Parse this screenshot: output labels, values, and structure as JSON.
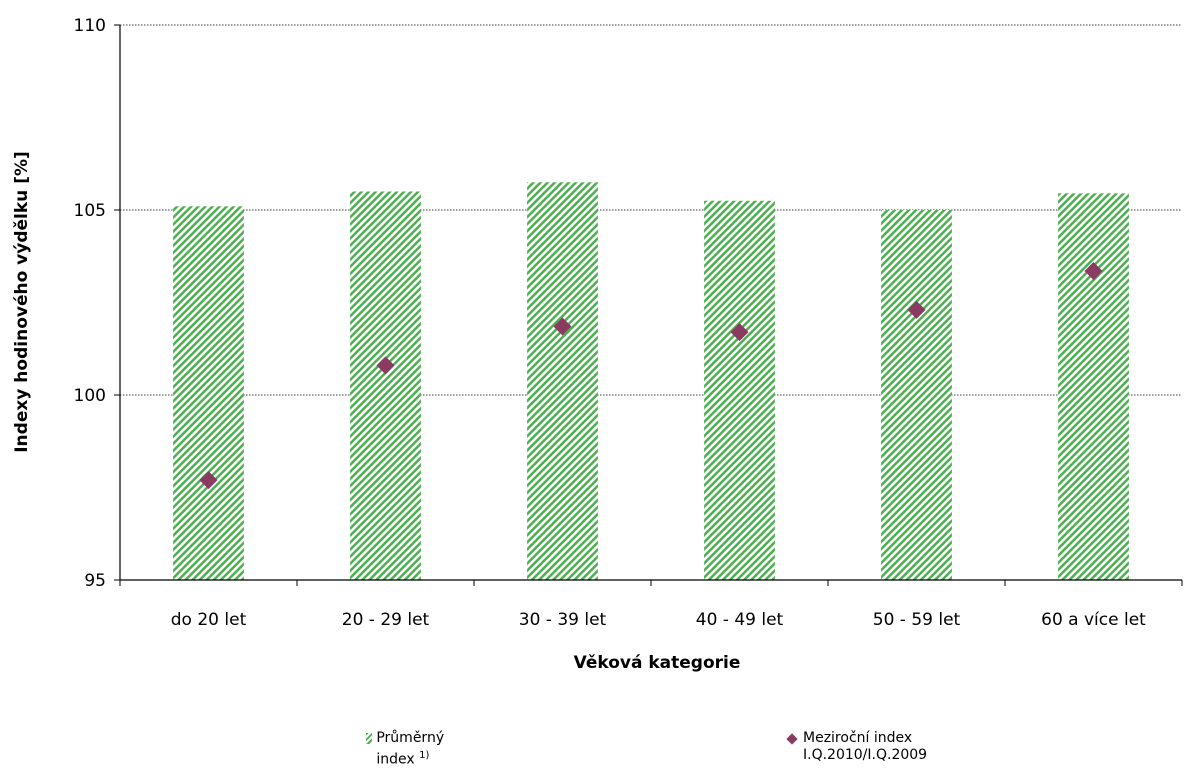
{
  "chart_data": {
    "type": "bar",
    "categories": [
      "do 20 let",
      "20 - 29 let",
      "30 - 39 let",
      "40 - 49 let",
      "50 - 59 let",
      "60 a více let"
    ],
    "series": [
      {
        "name": "Průměrný index",
        "type": "bar",
        "values": [
          105.1,
          105.5,
          105.75,
          105.25,
          105.0,
          105.45
        ],
        "color": "#4caf50"
      },
      {
        "name": "Meziroční index I.Q.2010/I.Q.2009",
        "type": "scatter",
        "values": [
          97.7,
          100.8,
          101.85,
          101.7,
          102.3,
          103.35
        ],
        "color": "#8b3a62"
      }
    ],
    "xlabel": "Věková kategorie",
    "ylabel": "Indexy hodinového výdělku [%]",
    "ylim": [
      95,
      110
    ],
    "yticks": [
      95,
      100,
      105,
      110
    ],
    "grid": true,
    "legend": "bottom"
  },
  "legend": {
    "bar_label": "Průměrný index",
    "bar_sup": "1)",
    "marker_label_line1": "Meziroční index",
    "marker_label_line2": "I.Q.2010/I.Q.2009"
  }
}
